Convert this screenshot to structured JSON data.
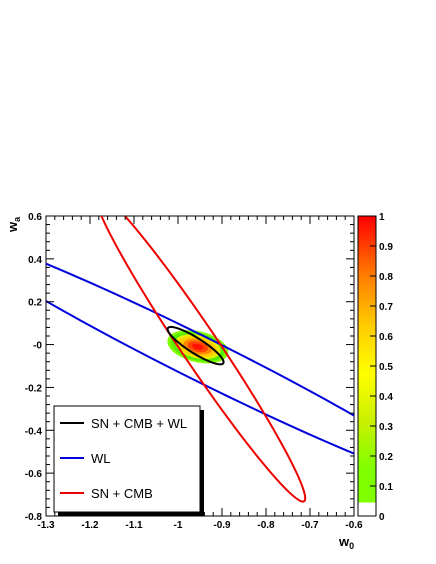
{
  "chart_data": {
    "type": "contour",
    "title": "",
    "xlabel": {
      "main": "w",
      "sub": "0"
    },
    "ylabel": {
      "main": "w",
      "sub": "a"
    },
    "xlim": [
      -1.3,
      -0.6
    ],
    "ylim": [
      -0.8,
      0.6
    ],
    "x_ticks": [
      "-1.3",
      "-1.2",
      "-1.1",
      "-1",
      "-0.9",
      "-0.8",
      "-0.7",
      "-0.6"
    ],
    "y_ticks": [
      "-0.8",
      "-0.6",
      "-0.4",
      "-0.2",
      "-0",
      "0.2",
      "0.4",
      "0.6"
    ],
    "colorbar": {
      "range": [
        0,
        1
      ],
      "ticks": [
        "0",
        "0.1",
        "0.2",
        "0.3",
        "0.4",
        "0.5",
        "0.6",
        "0.7",
        "0.8",
        "0.9",
        "1"
      ]
    },
    "filled_density": {
      "center": [
        -0.955,
        -0.01
      ],
      "semi_major": 0.085,
      "semi_minor": 0.06,
      "angle_deg": -55,
      "levels": [
        {
          "level": 0.1,
          "color": "#80ff00"
        },
        {
          "level": 0.3,
          "color": "#55ee00"
        },
        {
          "level": 0.5,
          "color": "#e6f000"
        },
        {
          "level": 0.65,
          "color": "#ffcc00"
        },
        {
          "level": 0.8,
          "color": "#ff8800"
        },
        {
          "level": 0.9,
          "color": "#ff4400"
        },
        {
          "level": 0.97,
          "color": "#ff1000"
        }
      ]
    },
    "series": [
      {
        "name": "SN + CMB + WL",
        "color": "#000000",
        "center": [
          -0.96,
          -0.005
        ],
        "semi_major": 0.105,
        "semi_minor": 0.025,
        "angle_deg": -55
      },
      {
        "name": "WL",
        "color": "#0000dd",
        "center": [
          -0.945,
          -0.07
        ],
        "semi_major": 0.795,
        "semi_minor": 0.079,
        "angle_deg": -46
      },
      {
        "name": "SN + CMB",
        "color": "#ee0000",
        "center": [
          -0.95,
          -0.01
        ],
        "semi_major": 0.76,
        "semi_minor": 0.0475,
        "angle_deg": -72
      }
    ],
    "legend": {
      "placement": "bottom-left"
    }
  }
}
